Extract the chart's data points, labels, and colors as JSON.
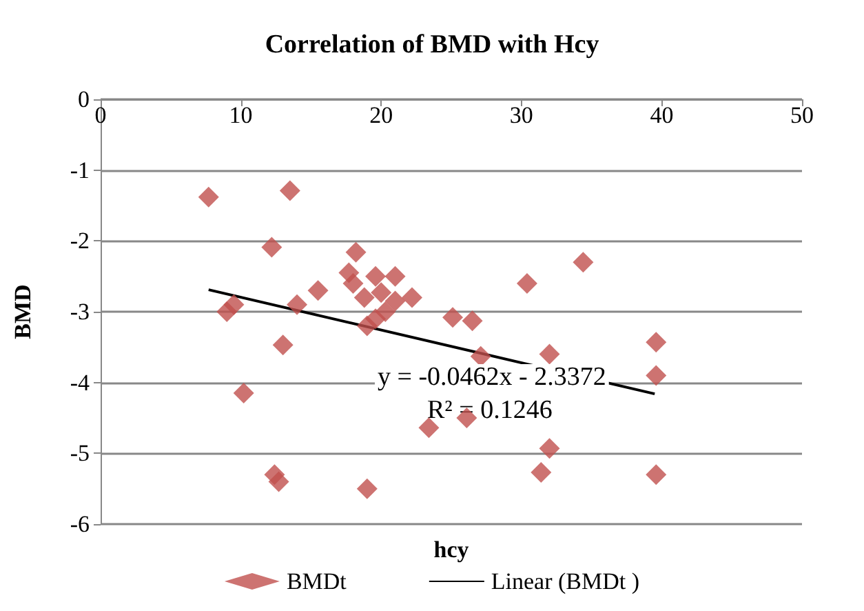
{
  "chart_data": {
    "type": "scatter",
    "title": "Correlation of BMD with Hcy",
    "xlabel": "hcy",
    "ylabel": "BMD",
    "xlim": [
      0,
      50
    ],
    "xticks": [
      0,
      10,
      20,
      30,
      40,
      50
    ],
    "ylim": [
      -6,
      0
    ],
    "yticks": [
      0,
      -1,
      -2,
      -3,
      -4,
      -5,
      -6
    ],
    "grid": "y",
    "legend": "bottom",
    "marker": "diamond",
    "annotations": [
      "y = -0.0462x - 2.3372",
      "R² = 0.1246"
    ],
    "series": [
      {
        "name": "BMDt",
        "color": "#c0504d",
        "x": [
          7.7,
          13.5,
          12.2,
          9.0,
          9.5,
          14,
          15.5,
          13,
          10.2,
          12.4,
          12.7,
          19,
          18.2,
          17.7,
          18,
          19.6,
          21,
          18.8,
          20,
          21,
          22.2,
          20.3,
          19.6,
          19,
          25.1,
          26.5,
          27.1,
          23.4,
          26.1,
          30.4,
          34.4,
          32,
          39.6,
          39.6,
          32,
          31.4,
          39.6
        ],
        "values": [
          -1.38,
          -1.29,
          -2.09,
          -3.0,
          -2.9,
          -2.9,
          -2.7,
          -3.47,
          -4.15,
          -5.3,
          -5.4,
          -5.5,
          -2.16,
          -2.45,
          -2.6,
          -2.5,
          -2.5,
          -2.8,
          -2.73,
          -2.85,
          -2.8,
          -3.0,
          -3.1,
          -3.2,
          -3.08,
          -3.13,
          -3.63,
          -4.64,
          -4.5,
          -2.6,
          -2.3,
          -3.6,
          -3.43,
          -3.9,
          -4.93,
          -5.27,
          -5.3
        ]
      },
      {
        "name": "Linear (BMDt )",
        "color": "#000000",
        "type": "line",
        "marker": "none",
        "x": [
          7.7,
          39.5
        ],
        "values": [
          -2.69,
          -4.16
        ]
      }
    ]
  }
}
